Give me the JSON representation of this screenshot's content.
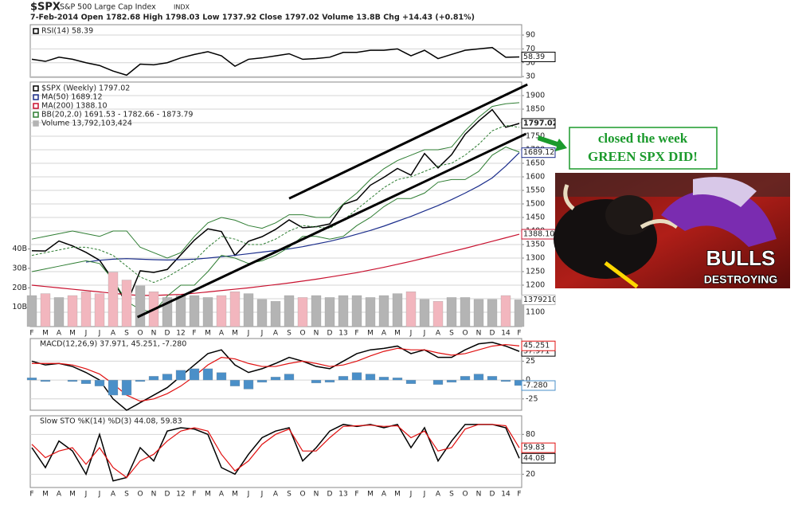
{
  "header": {
    "symbol": "$SPX",
    "name": "S&P 500 Large Cap Index",
    "exchange": "INDX",
    "quote": "7-Feb-2014   Open 1782.68  High 1798.03  Low 1737.92  Close 1797.02  Volume 13.8B  Chg +14.43 (+0.81%)"
  },
  "annotation": {
    "lines": [
      "closed the week",
      "GREEN SPX DID!"
    ],
    "image_text": [
      "BULLS",
      "DESTROYING"
    ]
  },
  "chart_data": [
    {
      "type": "line",
      "ylim": [
        29,
        105
      ],
      "yticks": [
        30,
        50,
        70,
        90
      ],
      "grid": true,
      "series": [
        {
          "name": "RSI(14) 58.39",
          "color": "#000000",
          "last_box": true,
          "values": [
            55,
            52,
            58,
            55,
            50,
            46,
            38,
            32,
            48,
            47,
            50,
            57,
            62,
            66,
            60,
            45,
            55,
            57,
            60,
            63,
            55,
            56,
            58,
            65,
            65,
            68,
            68,
            70,
            60,
            68,
            56,
            62,
            68,
            70,
            72,
            58,
            58.39
          ]
        }
      ]
    },
    {
      "type": "line",
      "ylim": [
        1047,
        1950
      ],
      "yticks": [
        1100,
        1150,
        1200,
        1250,
        1300,
        1350,
        1400,
        1450,
        1500,
        1550,
        1600,
        1650,
        1700,
        1750,
        1800,
        1850,
        1900
      ],
      "grid": true,
      "y2lim": [
        0,
        126000000000
      ],
      "y2ticks": [
        {
          "value": 10000000000,
          "label": "10B"
        },
        {
          "value": 20000000000,
          "label": "20B"
        },
        {
          "value": 30000000000,
          "label": "30B"
        },
        {
          "value": 40000000000,
          "label": "40B"
        }
      ],
      "categories": [
        "F",
        "M",
        "A",
        "M",
        "J",
        "J",
        "A",
        "S",
        "O",
        "N",
        "D",
        "12",
        "F",
        "M",
        "A",
        "M",
        "J",
        "J",
        "A",
        "S",
        "O",
        "N",
        "D",
        "13",
        "F",
        "M",
        "A",
        "M",
        "J",
        "J",
        "A",
        "S",
        "O",
        "N",
        "D",
        "14",
        "F"
      ],
      "series": [
        {
          "name": "$SPX (Weekly) 1797.02",
          "color": "#000000",
          "last_box": true,
          "values": [
            1327,
            1326,
            1363,
            1345,
            1321,
            1292,
            1219,
            1131,
            1253,
            1247,
            1258,
            1312,
            1366,
            1408,
            1398,
            1310,
            1362,
            1379,
            1406,
            1441,
            1412,
            1416,
            1426,
            1498,
            1515,
            1569,
            1598,
            1631,
            1606,
            1686,
            1633,
            1682,
            1757,
            1806,
            1848,
            1783,
            1797.02
          ]
        },
        {
          "name": "MA(50) 1689.12",
          "color": "#1c2e8c",
          "last_box": true,
          "values": [
            null,
            null,
            null,
            null,
            1285,
            1292,
            1296,
            1298,
            1296,
            1294,
            1293,
            1294,
            1296,
            1300,
            1305,
            1310,
            1316,
            1322,
            1328,
            1334,
            1342,
            1352,
            1362,
            1374,
            1388,
            1402,
            1418,
            1436,
            1454,
            1474,
            1494,
            1516,
            1540,
            1566,
            1596,
            1640,
            1689.12
          ]
        },
        {
          "name": "MA(200) 1388.10",
          "color": "#c8102e",
          "last_box": true,
          "values": [
            1200,
            1195,
            1190,
            1185,
            1180,
            1175,
            1170,
            1165,
            1162,
            1162,
            1164,
            1166,
            1170,
            1175,
            1180,
            1185,
            1190,
            1196,
            1202,
            1208,
            1215,
            1222,
            1230,
            1238,
            1246,
            1256,
            1266,
            1277,
            1288,
            1300,
            1312,
            1324,
            1336,
            1349,
            1362,
            1375,
            1388.1
          ],
          "value_labels": [
            null,
            null,
            null,
            null,
            null,
            null,
            null,
            null,
            null,
            null,
            null,
            null,
            null,
            null,
            null,
            null,
            null,
            null,
            null,
            null,
            null,
            null,
            null,
            null,
            null,
            null,
            null,
            null,
            null,
            null,
            null,
            null,
            null,
            null,
            null,
            null,
            "1388.10"
          ]
        },
        {
          "name": "BB(20,2.0) 1691.53 - 1782.66 - 1873.79",
          "color": "#2e7d32",
          "band": true,
          "values": [
            1310,
            1320,
            1330,
            1340,
            1340,
            1330,
            1310,
            1270,
            1230,
            1210,
            1230,
            1260,
            1290,
            1340,
            1380,
            1370,
            1350,
            1350,
            1370,
            1400,
            1420,
            1415,
            1410,
            1440,
            1480,
            1520,
            1560,
            1590,
            1600,
            1620,
            1640,
            1650,
            1680,
            1720,
            1770,
            1790,
            1782.66
          ],
          "upper": [
            1370,
            1380,
            1390,
            1400,
            1390,
            1380,
            1400,
            1400,
            1340,
            1320,
            1300,
            1320,
            1380,
            1430,
            1450,
            1440,
            1420,
            1410,
            1430,
            1460,
            1460,
            1450,
            1450,
            1500,
            1540,
            1590,
            1630,
            1660,
            1680,
            1700,
            1700,
            1710,
            1770,
            1820,
            1860,
            1870,
            1873.79
          ],
          "lower": [
            1250,
            1260,
            1270,
            1280,
            1290,
            1280,
            1220,
            1140,
            1110,
            1100,
            1160,
            1200,
            1200,
            1250,
            1310,
            1300,
            1280,
            1290,
            1310,
            1340,
            1380,
            1380,
            1370,
            1380,
            1420,
            1450,
            1490,
            1520,
            1520,
            1540,
            1580,
            1590,
            1590,
            1620,
            1680,
            1710,
            1691.53
          ]
        },
        {
          "name": "Volume 13,792,103,424",
          "type": "bar",
          "axis": "y2",
          "color": "#b4b4b4",
          "down_color": "#f2b6be",
          "last_box": true,
          "values": [
            16000000000,
            17000000000,
            15000000000,
            16000000000,
            18000000000,
            17000000000,
            28000000000,
            24000000000,
            21000000000,
            18000000000,
            15000000000,
            16000000000,
            16000000000,
            15000000000,
            16000000000,
            18000000000,
            17000000000,
            14000000000,
            13000000000,
            16000000000,
            15000000000,
            16000000000,
            15000000000,
            16000000000,
            16000000000,
            15000000000,
            16000000000,
            17000000000,
            18000000000,
            14000000000,
            13000000000,
            15000000000,
            15000000000,
            14000000000,
            14000000000,
            16000000000,
            13792103424
          ]
        }
      ],
      "trendlines": [
        {
          "x": [
            19,
            36.6
          ],
          "values": [
            1520,
            1941
          ],
          "color": "#000000"
        },
        {
          "x": [
            7.8,
            36.5
          ],
          "values": [
            1082,
            1759
          ],
          "color": "#000000"
        }
      ]
    },
    {
      "type": "line",
      "legend": "MACD(12,26,9) 37.971, 45.251, -7.280",
      "ylim": [
        -40,
        55
      ],
      "yticks": [
        25,
        0,
        -25
      ],
      "grid": true,
      "series": [
        {
          "color": "#000000",
          "last_box": true,
          "values": [
            25,
            20,
            22,
            18,
            10,
            0,
            -25,
            -40,
            -30,
            -20,
            -10,
            5,
            20,
            35,
            40,
            20,
            10,
            15,
            22,
            30,
            25,
            18,
            15,
            25,
            35,
            40,
            42,
            45,
            35,
            40,
            30,
            30,
            40,
            48,
            50,
            45,
            37.971
          ]
        },
        {
          "color": "#e01010",
          "last_box": true,
          "values": [
            22,
            22,
            22,
            20,
            15,
            8,
            -5,
            -20,
            -28,
            -25,
            -18,
            -8,
            5,
            20,
            30,
            28,
            22,
            18,
            18,
            22,
            25,
            22,
            18,
            20,
            25,
            32,
            38,
            42,
            40,
            40,
            36,
            33,
            35,
            40,
            45,
            47,
            45.251
          ]
        },
        {
          "type": "bar",
          "color": "#4a8fc8",
          "last_box": true,
          "values": [
            3,
            -2,
            0,
            -2,
            -5,
            -8,
            -20,
            -20,
            -2,
            5,
            8,
            13,
            15,
            15,
            10,
            -8,
            -12,
            -3,
            4,
            8,
            0,
            -4,
            -3,
            5,
            10,
            8,
            4,
            3,
            -5,
            0,
            -6,
            -3,
            5,
            8,
            5,
            -2,
            -7.28
          ],
          "value_labels": [
            null,
            null,
            null,
            null,
            null,
            null,
            null,
            null,
            null,
            null,
            null,
            null,
            null,
            null,
            null,
            null,
            null,
            null,
            null,
            null,
            null,
            null,
            null,
            null,
            null,
            null,
            null,
            null,
            null,
            null,
            null,
            null,
            null,
            null,
            null,
            null,
            "-7.280"
          ]
        }
      ]
    },
    {
      "type": "line",
      "legend": "Slow STO %K(14) %D(3) 44.08, 59.83",
      "ylim": [
        0,
        108
      ],
      "yticks": [
        20,
        80
      ],
      "grid": true,
      "categories": [
        "F",
        "M",
        "A",
        "M",
        "J",
        "J",
        "A",
        "S",
        "O",
        "N",
        "D",
        "12",
        "F",
        "M",
        "A",
        "M",
        "J",
        "J",
        "A",
        "S",
        "O",
        "N",
        "D",
        "13",
        "F",
        "M",
        "A",
        "M",
        "J",
        "J",
        "A",
        "S",
        "O",
        "N",
        "D",
        "14",
        "F"
      ],
      "series": [
        {
          "color": "#000000",
          "last_box": true,
          "values": [
            60,
            30,
            70,
            55,
            20,
            80,
            10,
            15,
            60,
            40,
            85,
            90,
            88,
            80,
            30,
            20,
            50,
            75,
            85,
            90,
            40,
            60,
            85,
            95,
            92,
            95,
            90,
            95,
            60,
            90,
            40,
            70,
            95,
            95,
            95,
            90,
            44.08
          ]
        },
        {
          "color": "#e01010",
          "last_box": true,
          "values": [
            65,
            45,
            55,
            60,
            35,
            60,
            30,
            15,
            40,
            50,
            70,
            85,
            90,
            85,
            50,
            25,
            40,
            65,
            80,
            88,
            55,
            55,
            75,
            92,
            93,
            94,
            92,
            93,
            75,
            85,
            55,
            60,
            88,
            95,
            95,
            93,
            59.83
          ]
        }
      ]
    }
  ]
}
